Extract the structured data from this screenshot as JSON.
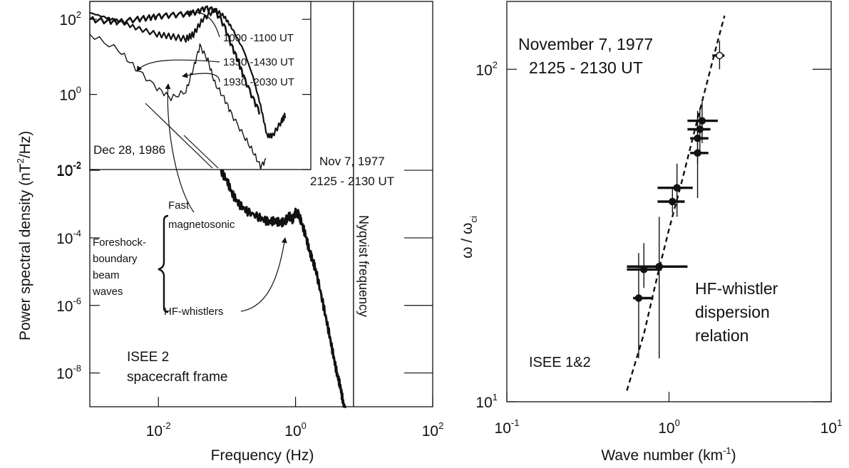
{
  "chart_data": [
    {
      "type": "line",
      "xlabel": "Frequency (Hz)",
      "ylabel": "Power spectral density (nT²/Hz)",
      "ylabel_main": "Power spectral density  (nT",
      "ylabel_sup": "2",
      "ylabel_tail": "/Hz)",
      "x_scale": "log",
      "y_scale": "log",
      "xlim": [
        0.001,
        100
      ],
      "ylim": [
        1e-09,
        1000
      ],
      "x_ticks": [
        {
          "value": 0.01,
          "base": "10",
          "exp": "-2"
        },
        {
          "value": 1,
          "base": "10",
          "exp": "0"
        },
        {
          "value": 100,
          "base": "10",
          "exp": "2"
        }
      ],
      "y_ticks": [
        {
          "value": 1e-08,
          "base": "10",
          "exp": "-8"
        },
        {
          "value": 1e-06,
          "base": "10",
          "exp": "-6"
        },
        {
          "value": 0.0001,
          "base": "10",
          "exp": "-4"
        },
        {
          "value": 0.01,
          "base": "10",
          "exp": "-2"
        }
      ],
      "nyquist": {
        "x": 7,
        "label": "Nyqvist frequency"
      },
      "main_spectrum": {
        "x": [
          0.08,
          0.1,
          0.12,
          0.15,
          0.2,
          0.3,
          0.4,
          0.5,
          0.6,
          0.7,
          0.8,
          0.9,
          1.0,
          1.1,
          1.2,
          1.4,
          1.6,
          1.8,
          2.0,
          2.5,
          3.0,
          3.5,
          4.0,
          4.5,
          5.0,
          5.5
        ],
        "y": [
          0.01,
          0.005,
          0.002,
          0.001,
          0.0006,
          0.0004,
          0.0003,
          0.00032,
          0.00028,
          0.0003,
          0.00045,
          0.00035,
          0.00055,
          0.0005,
          0.00032,
          0.00012,
          4e-05,
          2e-05,
          1e-05,
          1.2e-06,
          2e-07,
          4e-08,
          1e-08,
          4e-09,
          1.2e-09,
          5e-10
        ]
      },
      "annotations": {
        "date_main": "Nov 7, 1977",
        "time_main": "2125 - 2130  UT",
        "fast_line1": "Fast",
        "fast_line2": "magnetosonic",
        "foreshock_line1": "Foreshock-",
        "foreshock_line2": "boundary",
        "foreshock_line3": "beam",
        "foreshock_line4": "waves",
        "hf": "HF-whistlers",
        "isee_line1": "ISEE 2",
        "isee_line2": "spacecraft frame"
      },
      "inset": {
        "x_scale": "log",
        "y_scale": "log",
        "xlim": [
          0.001,
          0.2
        ],
        "ylim": [
          0.01,
          300
        ],
        "y_ticks": [
          {
            "value": 100,
            "base": "10",
            "exp": "2"
          },
          {
            "value": 1,
            "base": "10",
            "exp": "0"
          },
          {
            "value": 0.01,
            "base": "10",
            "exp": "-2"
          }
        ],
        "date": "Dec 28, 1986",
        "series": [
          {
            "name": "1000 -1100 UT",
            "x": [
              0.001,
              0.0015,
              0.002,
              0.003,
              0.004,
              0.005,
              0.007,
              0.01,
              0.013,
              0.016,
              0.02,
              0.025,
              0.03,
              0.035,
              0.04,
              0.05,
              0.06
            ],
            "y": [
              100,
              90,
              85,
              100,
              110,
              120,
              130,
              140,
              160,
              200,
              180,
              70,
              20,
              8,
              3,
              0.8,
              0.3
            ]
          },
          {
            "name": "1330 -1430 UT",
            "x": [
              0.001,
              0.0015,
              0.002,
              0.003,
              0.005,
              0.007,
              0.01,
              0.012,
              0.015,
              0.02,
              0.025,
              0.03,
              0.04,
              0.05,
              0.06,
              0.07,
              0.08,
              0.1,
              0.11
            ],
            "y": [
              150,
              110,
              90,
              60,
              40,
              35,
              30,
              40,
              100,
              180,
              120,
              60,
              15,
              3,
              0.5,
              0.08,
              0.08,
              0.2,
              0.3
            ]
          },
          {
            "name": "1930 -2030 UT",
            "x": [
              0.001,
              0.002,
              0.003,
              0.005,
              0.007,
              0.01,
              0.012,
              0.014,
              0.017,
              0.02,
              0.025,
              0.03,
              0.04,
              0.05,
              0.06,
              0.07
            ],
            "y": [
              40,
              15,
              5,
              1.5,
              0.8,
              1.2,
              5,
              20,
              8,
              2,
              0.8,
              0.3,
              0.08,
              0.03,
              0.012,
              0.02
            ]
          }
        ]
      }
    },
    {
      "type": "scatter",
      "xlabel": "Wave number (km⁻¹)",
      "xlabel_main": "Wave number (km",
      "xlabel_sup": "-1",
      "xlabel_tail": ")",
      "ylabel": "ω / ωci",
      "ylabel_main": "ω / ω",
      "ylabel_sub": "ci",
      "x_scale": "log",
      "y_scale": "log",
      "xlim": [
        0.1,
        10
      ],
      "ylim": [
        10,
        160
      ],
      "x_ticks": [
        {
          "value": 0.1,
          "base": "10",
          "exp": "-1"
        },
        {
          "value": 1,
          "base": "10",
          "exp": "0"
        },
        {
          "value": 10,
          "base": "10",
          "exp": "1"
        }
      ],
      "y_ticks": [
        {
          "value": 10,
          "base": "10",
          "exp": "1"
        },
        {
          "value": 100,
          "base": "10",
          "exp": "2"
        }
      ],
      "title_line1": "November 7, 1977",
      "title_line2": "2125 - 2130  UT",
      "curve_label_line1": "HF-whistler",
      "curve_label_line2": "dispersion",
      "curve_label_line3": "relation",
      "instrument": "ISEE 1&2",
      "dispersion_curve": {
        "x": [
          0.55,
          0.7,
          0.85,
          1.0,
          1.2,
          1.4,
          1.6,
          1.8,
          2.0,
          2.2
        ],
        "y": [
          10.8,
          16,
          24,
          33,
          46,
          62,
          80,
          100,
          122,
          145
        ]
      },
      "points": [
        {
          "x": 0.65,
          "y": 20.5,
          "xerr": [
            0.6,
            0.8
          ],
          "yerr": [
            13.5,
            28
          ]
        },
        {
          "x": 0.7,
          "y": 25,
          "xerr": [
            0.55,
            0.9
          ],
          "yerr": [
            22,
            30
          ]
        },
        {
          "x": 0.87,
          "y": 25.5,
          "xerr": [
            0.55,
            1.3
          ],
          "yerr": [
            13.5,
            36
          ]
        },
        {
          "x": 1.05,
          "y": 40,
          "xerr": [
            0.85,
            1.25
          ],
          "yerr": [
            37,
            44
          ]
        },
        {
          "x": 1.12,
          "y": 44,
          "xerr": [
            0.85,
            1.4
          ],
          "yerr": [
            36,
            52
          ]
        },
        {
          "x": 1.5,
          "y": 56,
          "xerr": [
            1.35,
            1.75
          ],
          "yerr": [
            41,
            75
          ]
        },
        {
          "x": 1.5,
          "y": 62,
          "xerr": [
            1.35,
            1.75
          ],
          "yerr": [
            52,
            72
          ]
        },
        {
          "x": 1.55,
          "y": 66,
          "xerr": [
            1.3,
            1.8
          ],
          "yerr": [
            56,
            76
          ]
        },
        {
          "x": 1.6,
          "y": 70,
          "xerr": [
            1.3,
            2.0
          ],
          "yerr": [
            60,
            80
          ]
        },
        {
          "x": 2.05,
          "y": 110,
          "xerr": [
            1.85,
            2.2
          ],
          "yerr": [
            100,
            122
          ]
        }
      ]
    }
  ]
}
